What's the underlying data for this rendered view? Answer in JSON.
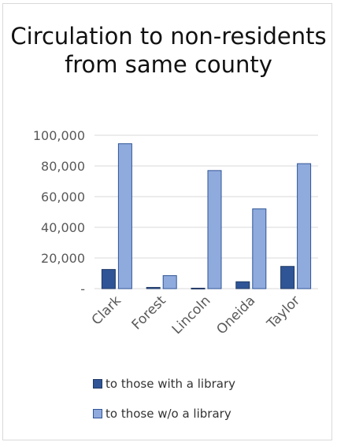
{
  "colors": {
    "with_library": "#2f5597",
    "with_library_border": "#1f3864",
    "without_library": "#8faadc",
    "without_library_border": "#2f5597",
    "grid": "#d9d9d9",
    "axis_text": "#595959"
  },
  "chart_data": {
    "type": "bar",
    "title": "Circulation to non-residents from same county",
    "categories": [
      "Clark",
      "Forest",
      "Lincoln",
      "Oneida",
      "Taylor"
    ],
    "series": [
      {
        "name": "to those with a library",
        "values": [
          12500,
          800,
          300,
          4500,
          14500
        ]
      },
      {
        "name": "to those w/o a library",
        "values": [
          94500,
          8500,
          77000,
          52000,
          81500
        ]
      }
    ],
    "ylim": [
      0,
      100000
    ],
    "y_ticks": [
      0,
      20000,
      40000,
      60000,
      80000,
      100000
    ],
    "y_tick_labels": [
      "-",
      "20,000",
      "40,000",
      "60,000",
      "80,000",
      "100,000"
    ],
    "xlabel": "",
    "ylabel": "",
    "grid": true,
    "legend_position": "bottom"
  }
}
